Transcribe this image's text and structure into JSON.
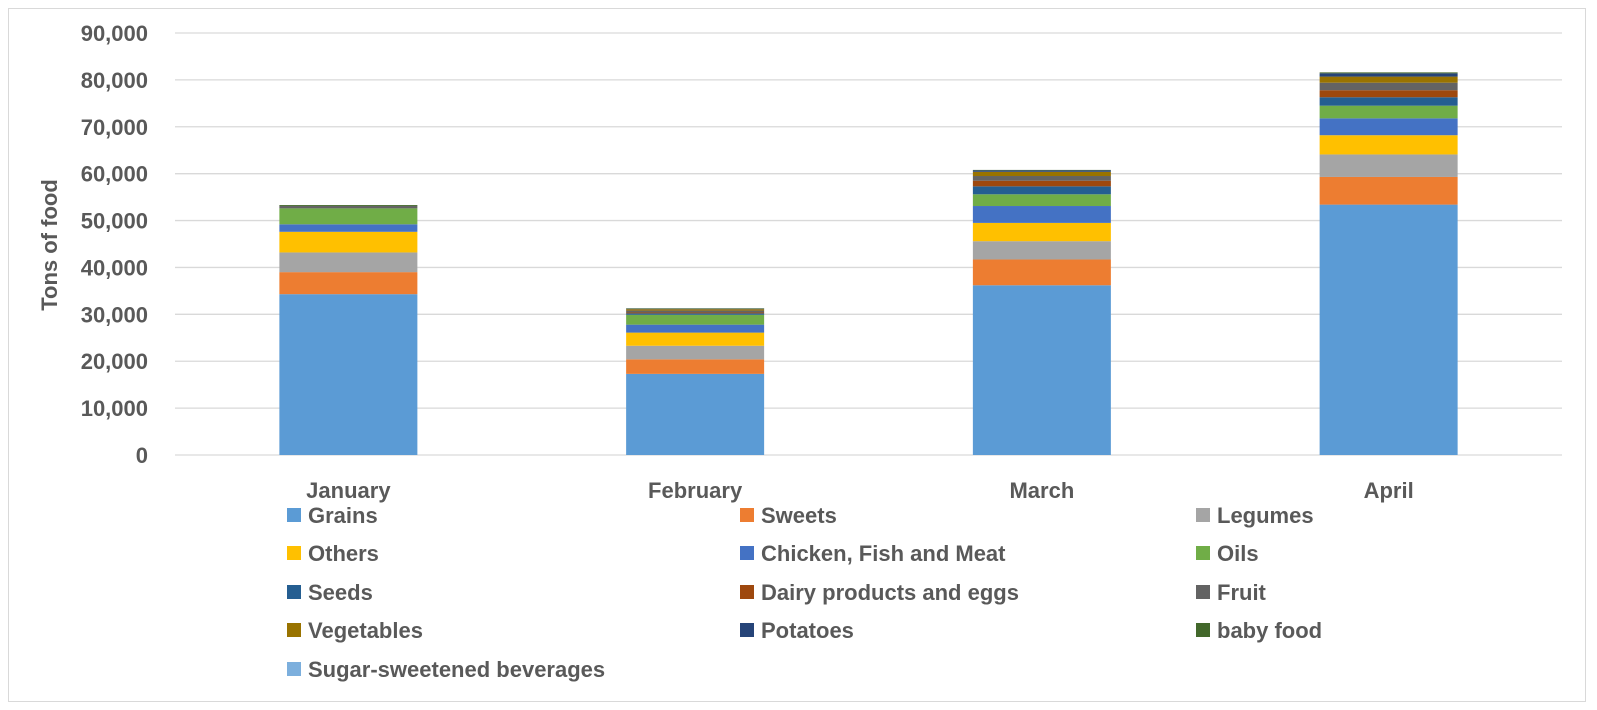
{
  "chart_data": {
    "type": "bar",
    "stacked": true,
    "title": "",
    "xlabel": "",
    "ylabel": "Tons of food",
    "ylim": [
      0,
      90000
    ],
    "yticks": [
      0,
      10000,
      20000,
      30000,
      40000,
      50000,
      60000,
      70000,
      80000,
      90000
    ],
    "grid": true,
    "legend_position": "bottom",
    "categories": [
      "January",
      "February",
      "March",
      "April"
    ],
    "series": [
      {
        "name": "Grains",
        "color": "#5b9bd5",
        "values": [
          34300,
          17300,
          36200,
          53400
        ]
      },
      {
        "name": "Sweets",
        "color": "#ed7d31",
        "values": [
          4700,
          3100,
          5500,
          5900
        ]
      },
      {
        "name": "Legumes",
        "color": "#a5a5a5",
        "values": [
          4200,
          2900,
          3900,
          4800
        ]
      },
      {
        "name": "Others",
        "color": "#ffc000",
        "values": [
          4400,
          2800,
          3900,
          4100
        ]
      },
      {
        "name": "Chicken, Fish and Meat",
        "color": "#4472c4",
        "values": [
          1600,
          1700,
          3600,
          3600
        ]
      },
      {
        "name": "Oils",
        "color": "#70ad47",
        "values": [
          3400,
          2100,
          2500,
          2700
        ]
      },
      {
        "name": "Seeds",
        "color": "#255e91",
        "values": [
          0,
          300,
          1700,
          1800
        ]
      },
      {
        "name": "Dairy products and eggs",
        "color": "#9e480e",
        "values": [
          0,
          200,
          1200,
          1500
        ]
      },
      {
        "name": "Fruit",
        "color": "#636363",
        "values": [
          500,
          400,
          1000,
          1600
        ]
      },
      {
        "name": "Vegetables",
        "color": "#997300",
        "values": [
          0,
          300,
          900,
          1300
        ]
      },
      {
        "name": "Potatoes",
        "color": "#264478",
        "values": [
          0,
          100,
          300,
          700
        ]
      },
      {
        "name": "baby food",
        "color": "#43682b",
        "values": [
          200,
          100,
          100,
          200
        ]
      },
      {
        "name": "Sugar-sweetened beverages",
        "color": "#7cafdd",
        "values": [
          0,
          0,
          0,
          0
        ]
      }
    ]
  }
}
